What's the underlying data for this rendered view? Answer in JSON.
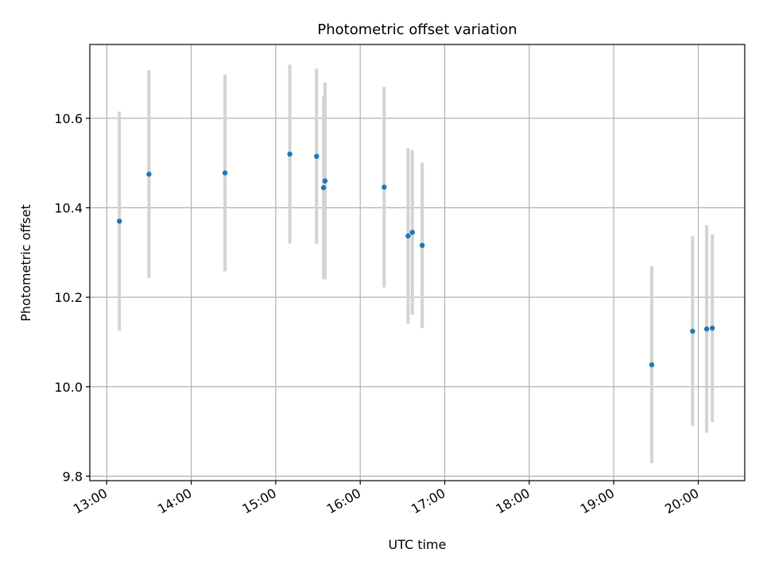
{
  "chart_data": {
    "type": "scatter",
    "title": "Photometric offset variation",
    "xlabel": "UTC time",
    "ylabel": "Photometric offset",
    "xlim": [
      "12:48",
      "20:33"
    ],
    "ylim": [
      9.79,
      10.765
    ],
    "grid": true,
    "x_ticks": [
      "13:00",
      "14:00",
      "15:00",
      "16:00",
      "17:00",
      "18:00",
      "19:00",
      "20:00"
    ],
    "y_ticks": [
      "9.8",
      "10.0",
      "10.2",
      "10.4",
      "10.6"
    ],
    "colors": {
      "point": "#1f77b4",
      "errorbar": "#d3d3d3",
      "grid": "#b0b0b0"
    },
    "points": [
      {
        "x": "13:09",
        "y": 10.37,
        "err": 0.245
      },
      {
        "x": "13:30",
        "y": 10.475,
        "err": 0.232
      },
      {
        "x": "14:24",
        "y": 10.478,
        "err": 0.22
      },
      {
        "x": "15:10",
        "y": 10.52,
        "err": 0.2
      },
      {
        "x": "15:29",
        "y": 10.515,
        "err": 0.196
      },
      {
        "x": "15:34",
        "y": 10.445,
        "err": 0.205
      },
      {
        "x": "15:35",
        "y": 10.46,
        "err": 0.22
      },
      {
        "x": "16:17",
        "y": 10.446,
        "err": 0.224
      },
      {
        "x": "16:34",
        "y": 10.337,
        "err": 0.196
      },
      {
        "x": "16:37",
        "y": 10.345,
        "err": 0.184
      },
      {
        "x": "16:44",
        "y": 10.316,
        "err": 0.185
      },
      {
        "x": "19:27",
        "y": 10.049,
        "err": 0.22
      },
      {
        "x": "19:56",
        "y": 10.124,
        "err": 0.212
      },
      {
        "x": "20:06",
        "y": 10.129,
        "err": 0.232
      },
      {
        "x": "20:10",
        "y": 10.131,
        "err": 0.21
      }
    ]
  }
}
